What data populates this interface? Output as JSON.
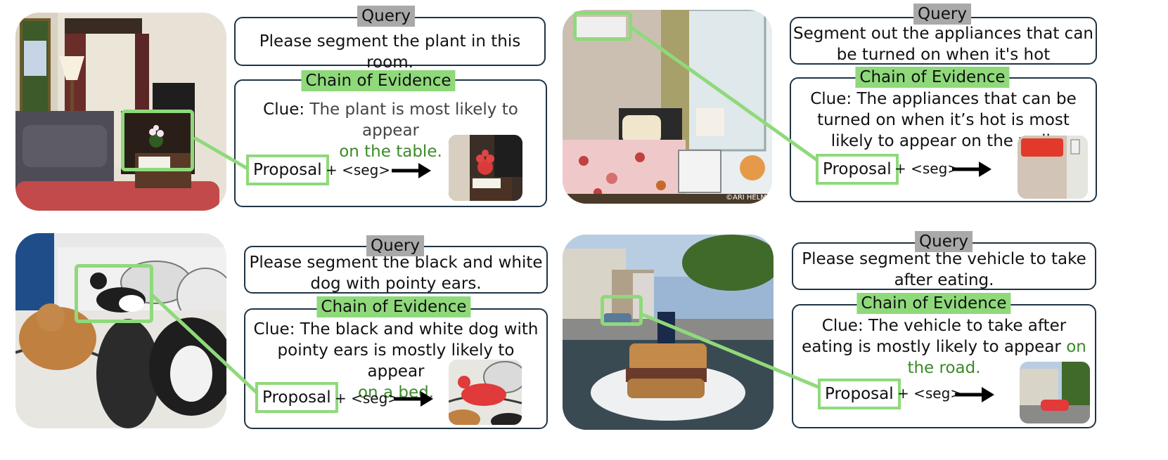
{
  "panels": [
    {
      "query_tag": "Query",
      "query_text": "Please segment the plant in this room.",
      "coe_tag": "Chain of Evidence",
      "clue_prefix": "Clue:",
      "clue_main": "The plant is most likely to appear",
      "clue_green": "on the table.",
      "proposal": "Proposal",
      "seg": "+ <seg>"
    },
    {
      "query_tag": "Query",
      "query_text": "Segment out the appliances that can be turned on when it's hot",
      "coe_tag": "Chain of Evidence",
      "clue_prefix": "Clue:",
      "clue_main": "The appliances that can be turned on when it’s hot is most likely to appear on the wall.",
      "clue_green": "",
      "proposal": "Proposal",
      "seg": "+ <seg>",
      "watermark": "©ARI HELMINEN"
    },
    {
      "query_tag": "Query",
      "query_text": "Please segment the black and white dog with pointy ears.",
      "coe_tag": "Chain of Evidence",
      "clue_prefix": "Clue:",
      "clue_main": "The black and white dog with pointy ears is mostly likely to appear",
      "clue_green": "on a bed.",
      "proposal": "Proposal",
      "seg": "+ <seg>"
    },
    {
      "query_tag": "Query",
      "query_text": "Please segment the vehicle to take after eating.",
      "coe_tag": "Chain of Evidence",
      "clue_prefix": "Clue:",
      "clue_main": "The vehicle to take after eating is mostly likely to appear",
      "clue_green": "on the road.",
      "proposal": "Proposal",
      "seg": "+ <seg>"
    }
  ],
  "colors": {
    "highlight": "#8fd97b",
    "border": "#1f3445",
    "query_bg": "#a9a9a9",
    "green_text": "#3b8a28"
  }
}
